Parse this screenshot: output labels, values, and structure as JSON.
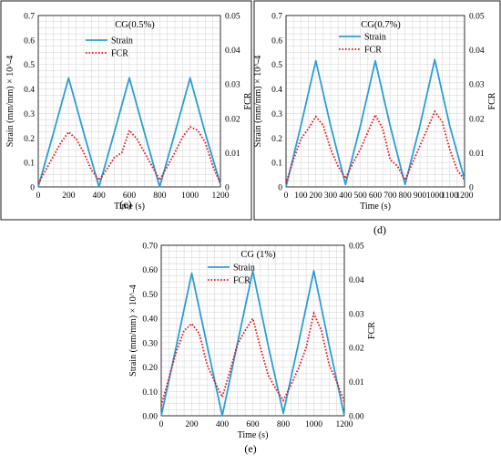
{
  "chart_data": [
    {
      "type": "line",
      "panel_label": "(c)",
      "title": "CG(0.5%)",
      "xlabel": "Time (s)",
      "ylabel": "Strain (mm/mm) × 10^-4",
      "y2label": "FCR",
      "xlim": [
        0,
        1200
      ],
      "ylim": [
        0,
        0.7
      ],
      "y2lim": [
        0,
        0.05
      ],
      "xticks": [
        "0",
        "200",
        "400",
        "600",
        "800",
        "1000",
        "1200"
      ],
      "yticks": [
        "0",
        "0.1",
        "0.2",
        "0.3",
        "0.4",
        "0.5",
        "0.6",
        "0.7"
      ],
      "y2ticks": [
        "0",
        "0.01",
        "0.02",
        "0.03",
        "0.04",
        "0.05"
      ],
      "legend_position": "top-center",
      "grid": true,
      "series": [
        {
          "name": "Strain",
          "axis": "left",
          "color": "#2a9fd6",
          "style": "solid",
          "x": [
            0,
            100,
            200,
            300,
            400,
            500,
            600,
            700,
            800,
            900,
            1000,
            1100,
            1200
          ],
          "y": [
            0,
            0.22,
            0.445,
            0.22,
            0,
            0.22,
            0.445,
            0.22,
            0,
            0.22,
            0.445,
            0.22,
            0.01
          ]
        },
        {
          "name": "FCR",
          "axis": "right",
          "color": "#e8141b",
          "style": "dotted",
          "x": [
            0,
            50,
            100,
            150,
            200,
            250,
            300,
            350,
            400,
            450,
            500,
            550,
            600,
            650,
            700,
            750,
            800,
            850,
            900,
            950,
            1000,
            1050,
            1100,
            1150,
            1200
          ],
          "y": [
            0.001,
            0.005,
            0.009,
            0.013,
            0.016,
            0.014,
            0.01,
            0.005,
            0.002,
            0.005,
            0.0085,
            0.01,
            0.0165,
            0.014,
            0.01,
            0.006,
            0.002,
            0.006,
            0.01,
            0.0145,
            0.0175,
            0.0165,
            0.013,
            0.006,
            0.001
          ]
        }
      ]
    },
    {
      "type": "line",
      "panel_label": "(d)",
      "title": "CG(0.7%)",
      "xlabel": "Time (s)",
      "ylabel": "Strain (mm/mm) × 10^-4",
      "y2label": "FCR",
      "xlim": [
        0,
        1200
      ],
      "ylim": [
        0,
        0.7
      ],
      "y2lim": [
        0,
        0.05
      ],
      "xticks": [
        "0",
        "100",
        "200",
        "300",
        "400",
        "500",
        "600",
        "700",
        "800",
        "900",
        "1000",
        "1100",
        "1200"
      ],
      "yticks": [
        "0",
        "0.1",
        "0.2",
        "0.3",
        "0.4",
        "0.5",
        "0.6",
        "0.7"
      ],
      "y2ticks": [
        "0",
        "0.01",
        "0.02",
        "0.03",
        "0.04",
        "0.05"
      ],
      "legend_position": "top-center",
      "grid": true,
      "series": [
        {
          "name": "Strain",
          "axis": "left",
          "color": "#2a9fd6",
          "style": "solid",
          "x": [
            0,
            100,
            200,
            300,
            400,
            500,
            600,
            700,
            800,
            900,
            1000,
            1100,
            1200
          ],
          "y": [
            0,
            0.25,
            0.515,
            0.25,
            0.01,
            0.25,
            0.515,
            0.25,
            0.01,
            0.25,
            0.52,
            0.25,
            0.03
          ]
        },
        {
          "name": "FCR",
          "axis": "right",
          "color": "#e8141b",
          "style": "dotted",
          "x": [
            0,
            50,
            100,
            150,
            200,
            250,
            300,
            350,
            400,
            450,
            500,
            550,
            600,
            650,
            700,
            750,
            800,
            850,
            900,
            950,
            1000,
            1050,
            1100,
            1150,
            1200
          ],
          "y": [
            0.001,
            0.008,
            0.014,
            0.017,
            0.0205,
            0.018,
            0.011,
            0.006,
            0.0025,
            0.007,
            0.011,
            0.016,
            0.021,
            0.017,
            0.008,
            0.006,
            0.002,
            0.007,
            0.012,
            0.017,
            0.022,
            0.019,
            0.011,
            0.005,
            0.002
          ]
        }
      ]
    },
    {
      "type": "line",
      "panel_label": "(e)",
      "title": "CG (1%)",
      "xlabel": "Time (s)",
      "ylabel": "Strain (mm/mm) × 10^-4",
      "y2label": "FCR",
      "xlim": [
        0,
        1200
      ],
      "ylim": [
        0,
        0.7
      ],
      "y2lim": [
        0,
        0.05
      ],
      "xticks": [
        "0",
        "200",
        "400",
        "600",
        "800",
        "1000",
        "1200"
      ],
      "yticks": [
        "0.00",
        "0.10",
        "0.20",
        "0.30",
        "0.40",
        "0.50",
        "0.60",
        "0.70"
      ],
      "y2ticks": [
        "0.00",
        "0.01",
        "0.02",
        "0.03",
        "0.04",
        "0.05"
      ],
      "legend_position": "top-center",
      "grid": true,
      "series": [
        {
          "name": "Strain",
          "axis": "left",
          "color": "#2a9fd6",
          "style": "solid",
          "x": [
            0,
            100,
            200,
            300,
            400,
            500,
            600,
            700,
            800,
            900,
            1000,
            1100,
            1200
          ],
          "y": [
            0,
            0.29,
            0.585,
            0.29,
            0,
            0.3,
            0.595,
            0.29,
            0.01,
            0.3,
            0.595,
            0.29,
            0
          ]
        },
        {
          "name": "FCR",
          "axis": "right",
          "color": "#e8141b",
          "style": "dotted",
          "x": [
            0,
            50,
            100,
            150,
            200,
            250,
            300,
            350,
            400,
            450,
            500,
            550,
            600,
            650,
            700,
            750,
            800,
            850,
            900,
            950,
            1000,
            1050,
            1100,
            1150,
            1200
          ],
          "y": [
            0.003,
            0.011,
            0.019,
            0.025,
            0.027,
            0.024,
            0.015,
            0.01,
            0.0055,
            0.013,
            0.021,
            0.025,
            0.0285,
            0.02,
            0.012,
            0.008,
            0.0045,
            0.009,
            0.014,
            0.02,
            0.03,
            0.025,
            0.015,
            0.01,
            0.004
          ]
        }
      ]
    }
  ]
}
